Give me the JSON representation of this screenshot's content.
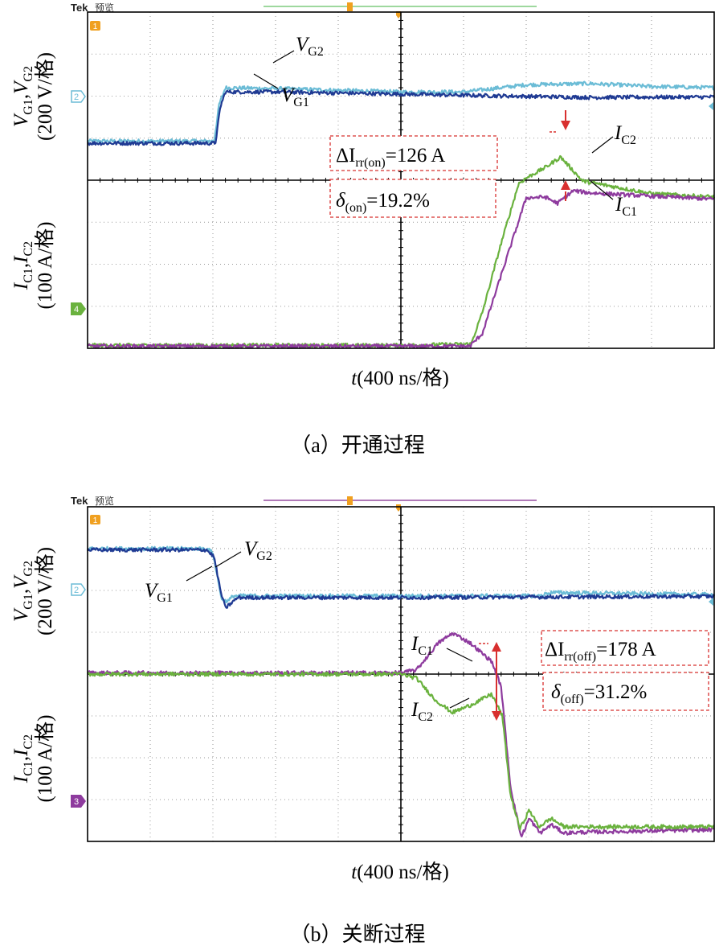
{
  "colors": {
    "vg1": "#1f3a93",
    "vg2": "#6bbcd6",
    "ic1": "#8e3b9e",
    "ic2": "#6ab23e",
    "annotation": "#d8302f",
    "grid": "#9a9a9a",
    "frame": "#000000",
    "marker_orange": "#f0a020",
    "trigger_line_top": "#9ed89e",
    "trigger_line_bottom": "#b07ab8"
  },
  "chart_data": [
    {
      "type": "line",
      "panel": "a",
      "caption": "（a）开通过程",
      "brand": "Tek",
      "mode": "预览",
      "xlabel_var": "t",
      "xlabel_unit": "(400 ns/格)",
      "x_range_div": [
        0,
        10
      ],
      "voltage_axis": {
        "label_vars": "V_G1, V_G2",
        "label_unit": "(200 V/格)"
      },
      "current_axis": {
        "label_vars": "I_C1, I_C2",
        "label_unit": "(100 A/格)"
      },
      "grid": true,
      "channel_markers": {
        "ch1": "1",
        "ch2": "2",
        "ch4": "4"
      },
      "series": [
        {
          "name": "VG2",
          "label": "V",
          "sub": "G2",
          "channel": 2,
          "points": [
            [
              0,
              4.93
            ],
            [
              1.5,
              4.93
            ],
            [
              2.02,
              4.93
            ],
            [
              2.1,
              5.8
            ],
            [
              2.2,
              6.2
            ],
            [
              3,
              6.18
            ],
            [
              5,
              6.1
            ],
            [
              6,
              6.1
            ],
            [
              7,
              6.27
            ],
            [
              8,
              6.3
            ],
            [
              9,
              6.23
            ],
            [
              10,
              6.2
            ]
          ]
        },
        {
          "name": "VG1",
          "label": "V",
          "sub": "G1",
          "channel": 1,
          "points": [
            [
              0,
              4.88
            ],
            [
              1.5,
              4.88
            ],
            [
              2.04,
              4.88
            ],
            [
              2.12,
              5.75
            ],
            [
              2.2,
              6.1
            ],
            [
              3,
              6.1
            ],
            [
              5,
              6.05
            ],
            [
              6,
              6.02
            ],
            [
              8,
              5.97
            ],
            [
              10,
              5.98
            ]
          ]
        },
        {
          "name": "IC2",
          "label": "I",
          "sub": "C2",
          "channel": 4,
          "points": [
            [
              0,
              0.07
            ],
            [
              1.5,
              0.07
            ],
            [
              5,
              0.07
            ],
            [
              6.12,
              0.1
            ],
            [
              6.3,
              0.85
            ],
            [
              6.6,
              2.5
            ],
            [
              6.88,
              3.92
            ],
            [
              7.0,
              4.05
            ],
            [
              7.3,
              4.3
            ],
            [
              7.55,
              4.55
            ],
            [
              7.9,
              3.98
            ],
            [
              9,
              3.68
            ],
            [
              10,
              3.6
            ]
          ]
        },
        {
          "name": "IC1",
          "label": "I",
          "sub": "C1",
          "channel": 1,
          "points": [
            [
              0,
              0.05
            ],
            [
              1.5,
              0.05
            ],
            [
              5,
              0.05
            ],
            [
              6.1,
              0.05
            ],
            [
              6.3,
              0.35
            ],
            [
              6.7,
              2.2
            ],
            [
              7.0,
              3.58
            ],
            [
              7.3,
              3.6
            ],
            [
              7.5,
              3.45
            ],
            [
              7.75,
              3.75
            ],
            [
              8.0,
              3.7
            ],
            [
              9,
              3.62
            ],
            [
              10,
              3.55
            ]
          ]
        }
      ],
      "annotations": [
        {
          "text_var": "ΔI",
          "text_sub": "rr(on)",
          "text_value": "=126 A"
        },
        {
          "text_var": "δ",
          "text_sub": "(on)",
          "text_value": "=19.2%"
        }
      ]
    },
    {
      "type": "line",
      "panel": "b",
      "caption": "（b）关断过程",
      "brand": "Tek",
      "mode": "预览",
      "xlabel_var": "t",
      "xlabel_unit": "(400 ns/格)",
      "x_range_div": [
        0,
        10
      ],
      "voltage_axis": {
        "label_vars": "V_G1, V_G2",
        "label_unit": "(200 V/格)"
      },
      "current_axis": {
        "label_vars": "I_C1, I_C2",
        "label_unit": "(100 A/格)"
      },
      "grid": true,
      "channel_markers": {
        "ch1": "1",
        "ch2": "2",
        "ch3": "3"
      },
      "series": [
        {
          "name": "VG2",
          "label": "V",
          "sub": "G2",
          "channel": 2,
          "points": [
            [
              0,
              7.0
            ],
            [
              1.9,
              7.0
            ],
            [
              2.0,
              6.9
            ],
            [
              2.1,
              6.1
            ],
            [
              2.15,
              5.75
            ],
            [
              2.25,
              5.75
            ],
            [
              2.32,
              5.87
            ],
            [
              5,
              5.87
            ],
            [
              7.2,
              5.87
            ],
            [
              7.4,
              5.95
            ],
            [
              10,
              5.9
            ]
          ]
        },
        {
          "name": "VG1",
          "label": "V",
          "sub": "G1",
          "channel": 1,
          "points": [
            [
              0,
              6.97
            ],
            [
              1.9,
              6.97
            ],
            [
              2.02,
              6.8
            ],
            [
              2.12,
              6.0
            ],
            [
              2.2,
              5.58
            ],
            [
              2.32,
              5.73
            ],
            [
              2.4,
              5.83
            ],
            [
              5,
              5.83
            ],
            [
              10,
              5.86
            ]
          ]
        },
        {
          "name": "IC1",
          "label": "I",
          "sub": "C1",
          "channel": 3,
          "points": [
            [
              0,
              4.03
            ],
            [
              3,
              4.03
            ],
            [
              4.5,
              4.03
            ],
            [
              5,
              4.03
            ],
            [
              5.25,
              4.1
            ],
            [
              5.6,
              4.75
            ],
            [
              5.83,
              4.98
            ],
            [
              6.1,
              4.75
            ],
            [
              6.45,
              4.3
            ],
            [
              6.6,
              3.7
            ],
            [
              6.75,
              1.3
            ],
            [
              6.92,
              0.1
            ],
            [
              7.05,
              0.55
            ],
            [
              7.22,
              0.2
            ],
            [
              7.4,
              0.4
            ],
            [
              7.6,
              0.2
            ],
            [
              7.9,
              0.22
            ],
            [
              10,
              0.28
            ]
          ]
        },
        {
          "name": "IC2",
          "label": "I",
          "sub": "C2",
          "channel": 3,
          "points": [
            [
              0,
              4.0
            ],
            [
              3,
              4.0
            ],
            [
              5,
              4.0
            ],
            [
              5.25,
              3.9
            ],
            [
              5.55,
              3.38
            ],
            [
              5.82,
              3.08
            ],
            [
              6.1,
              3.25
            ],
            [
              6.45,
              3.52
            ],
            [
              6.62,
              3.0
            ],
            [
              6.75,
              1.1
            ],
            [
              6.9,
              0.3
            ],
            [
              7.05,
              0.75
            ],
            [
              7.2,
              0.35
            ],
            [
              7.4,
              0.55
            ],
            [
              7.6,
              0.35
            ],
            [
              7.9,
              0.35
            ],
            [
              10,
              0.35
            ]
          ]
        }
      ],
      "annotations": [
        {
          "text_var": "ΔI",
          "text_sub": "rr(off)",
          "text_value": "=178 A"
        },
        {
          "text_var": "δ",
          "text_sub": "(off)",
          "text_value": "=31.2%"
        }
      ]
    }
  ]
}
